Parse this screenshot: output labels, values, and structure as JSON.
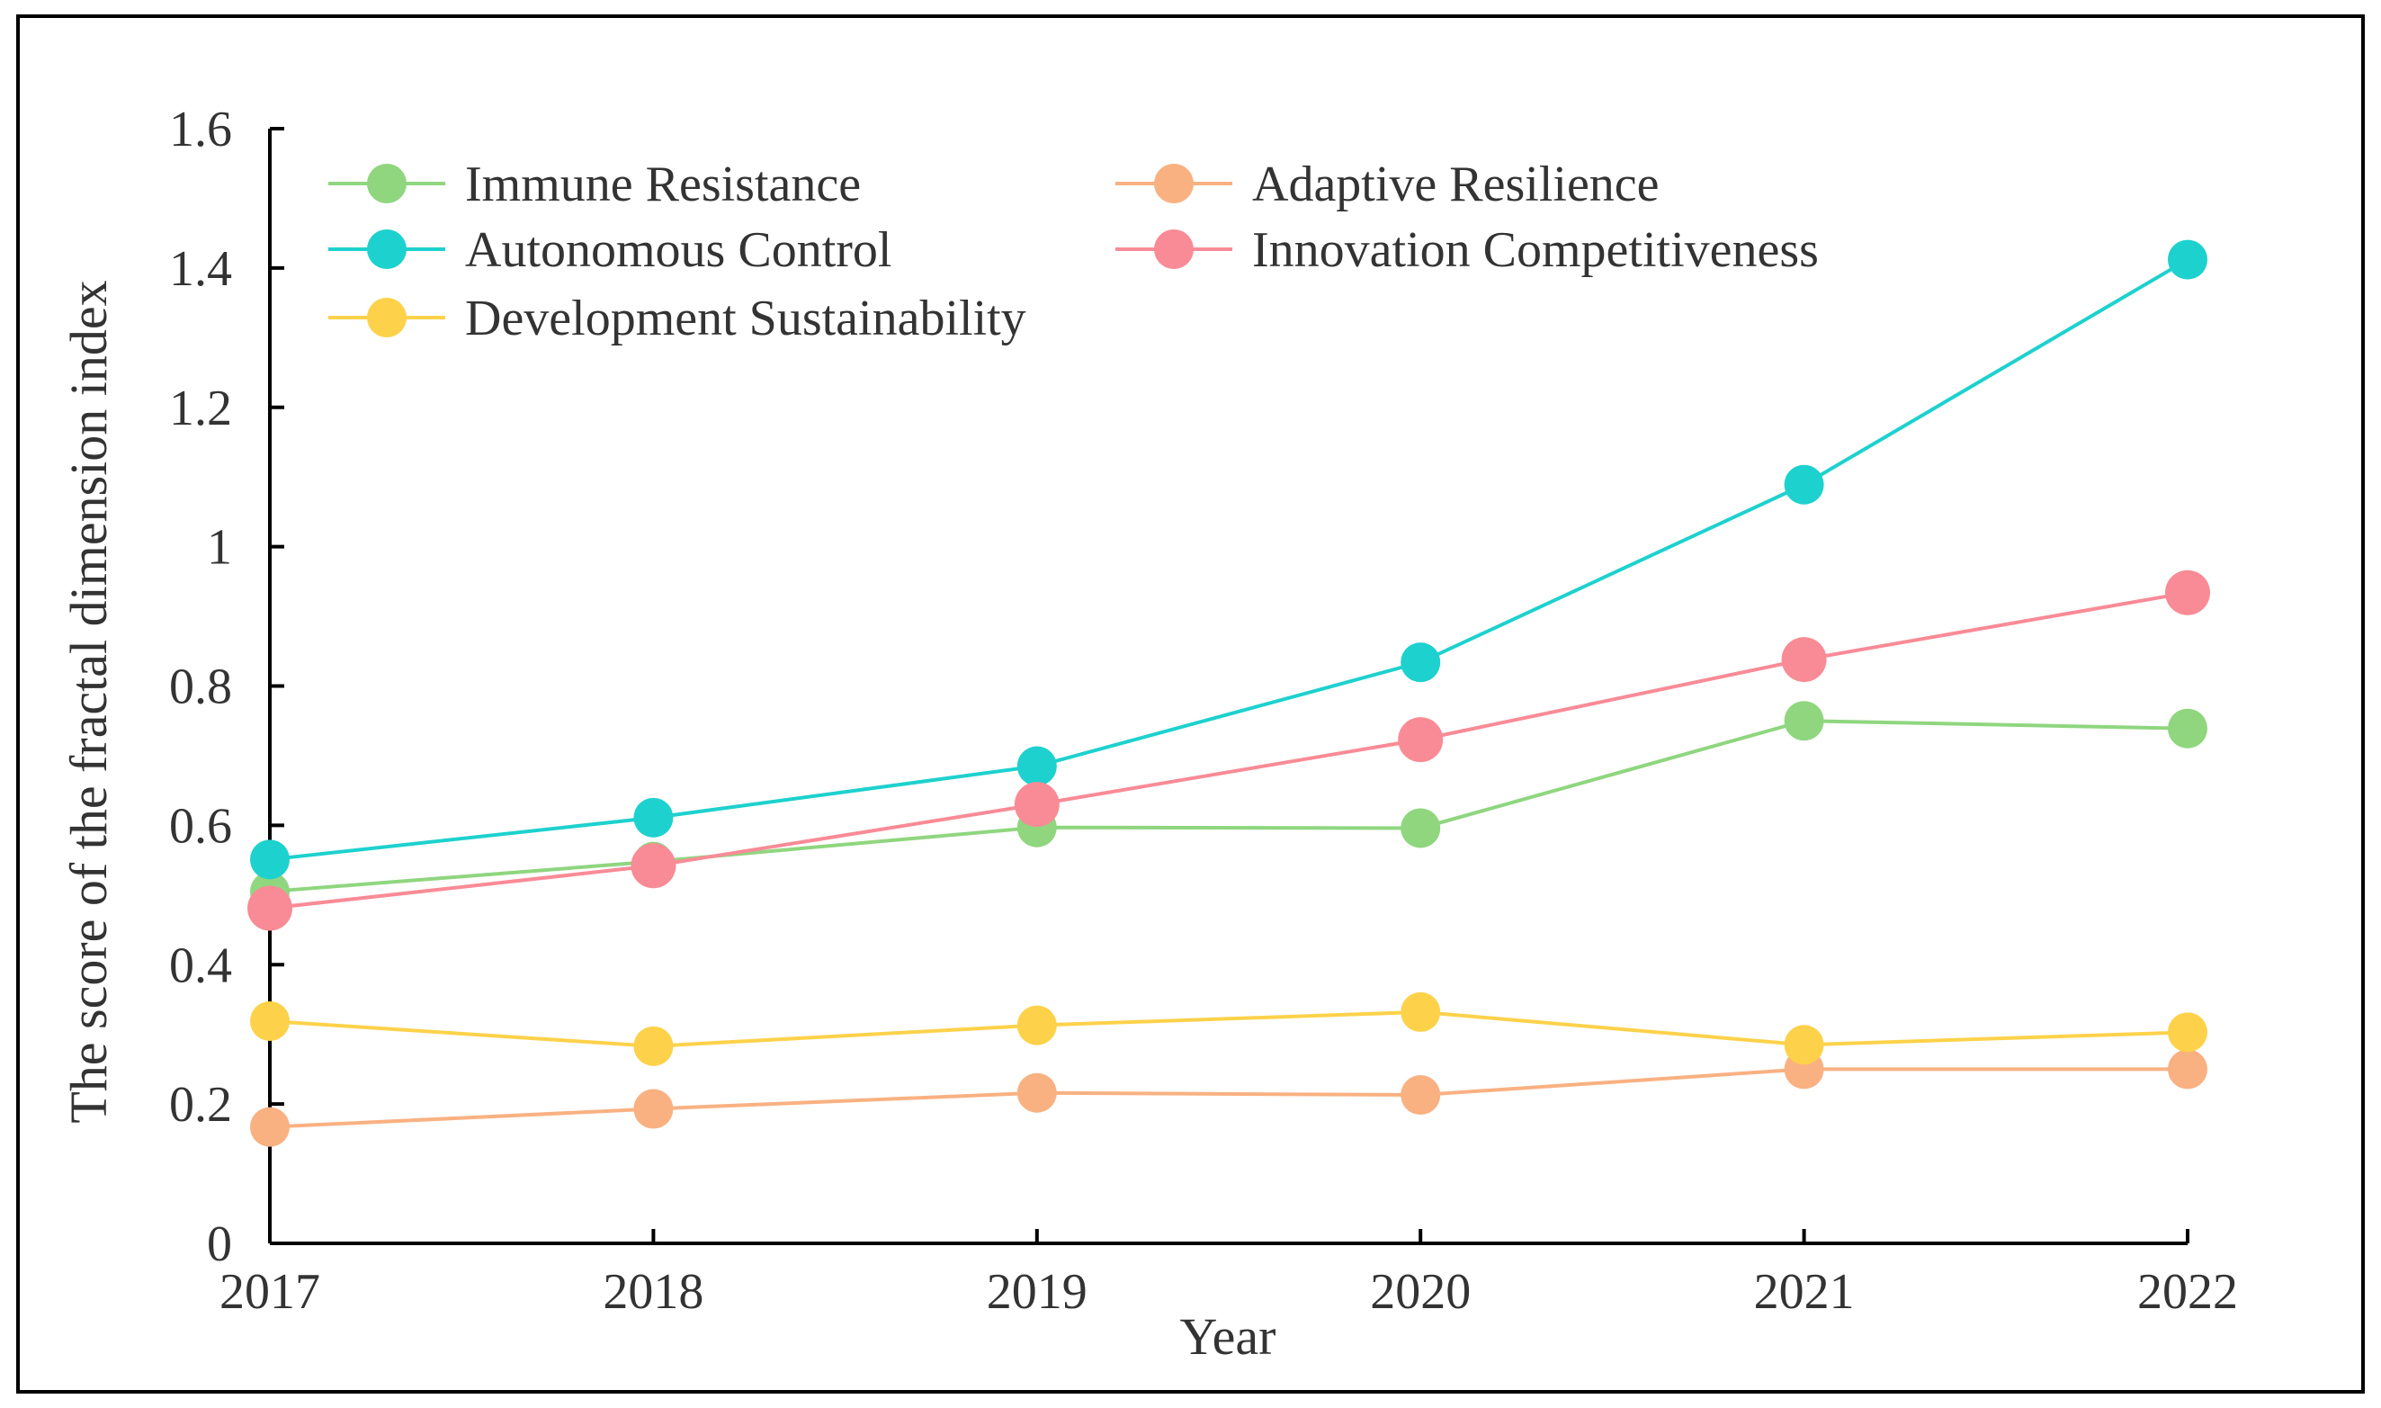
{
  "chart_data": {
    "type": "line",
    "title": "",
    "xlabel": "Year",
    "ylabel": "The score of the fractal dimension index",
    "categories": [
      "2017",
      "2018",
      "2019",
      "2020",
      "2021",
      "2022"
    ],
    "ylim": [
      0,
      1.6
    ],
    "yticks": [
      0,
      0.2,
      0.4,
      0.6,
      0.8,
      1,
      1.2,
      1.4,
      1.6
    ],
    "ytick_labels": [
      "0",
      "0.2",
      "0.4",
      "0.6",
      "0.8",
      "1",
      "1.2",
      "1.4",
      "1.6"
    ],
    "legend_position": "top-left",
    "grid": false,
    "series": [
      {
        "name": "Immune Resistance",
        "color": "#8fd67f",
        "values": [
          0.505,
          0.548,
          0.597,
          0.596,
          0.75,
          0.739
        ]
      },
      {
        "name": "Adaptive Resilience",
        "color": "#f9b182",
        "values": [
          0.167,
          0.193,
          0.216,
          0.213,
          0.25,
          0.25
        ]
      },
      {
        "name": "Autonomous Control",
        "color": "#1dd1ce",
        "values": [
          0.551,
          0.611,
          0.685,
          0.834,
          1.089,
          1.412
        ]
      },
      {
        "name": "Innovation Competitiveness",
        "color": "#f98b96",
        "values": [
          0.481,
          0.542,
          0.63,
          0.723,
          0.838,
          0.934
        ]
      },
      {
        "name": "Development Sustainability",
        "color": "#fdd24a",
        "values": [
          0.319,
          0.283,
          0.313,
          0.332,
          0.285,
          0.303
        ]
      }
    ]
  }
}
